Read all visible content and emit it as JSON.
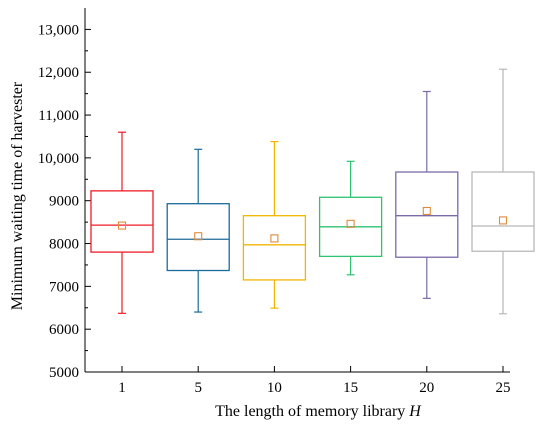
{
  "chart_data": {
    "type": "box",
    "xlabel": "The length of memory library",
    "xlabel_var": "H",
    "ylabel": "Minimum waiting time of harvester",
    "ylim": [
      5000,
      13500
    ],
    "yticks": [
      5000,
      6000,
      7000,
      8000,
      9000,
      10000,
      11000,
      12000,
      13000
    ],
    "ytick_labels": [
      "5000",
      "6000",
      "7000",
      "8000",
      "9000",
      "10,000",
      "11,000",
      "12,000",
      "13,000"
    ],
    "categories": [
      "1",
      "5",
      "10",
      "15",
      "20",
      "25"
    ],
    "mean_marker_color": "#e08a3c",
    "grid": false,
    "boxes": [
      {
        "category": "1",
        "color": "#ee1c25",
        "whisker_low": 6370,
        "q1": 7800,
        "median": 8430,
        "q3": 9230,
        "whisker_high": 10600,
        "mean": 8420
      },
      {
        "category": "5",
        "color": "#1b6b9a",
        "whisker_low": 6400,
        "q1": 7370,
        "median": 8100,
        "q3": 8930,
        "whisker_high": 10200,
        "mean": 8170
      },
      {
        "category": "10",
        "color": "#f2b600",
        "whisker_low": 6490,
        "q1": 7150,
        "median": 7970,
        "q3": 8650,
        "whisker_high": 10380,
        "mean": 8120
      },
      {
        "category": "15",
        "color": "#2ec272",
        "whisker_low": 7270,
        "q1": 7700,
        "median": 8390,
        "q3": 9080,
        "whisker_high": 9920,
        "mean": 8460
      },
      {
        "category": "20",
        "color": "#7b6aa8",
        "whisker_low": 6720,
        "q1": 7680,
        "median": 8650,
        "q3": 9670,
        "whisker_high": 11550,
        "mean": 8760
      },
      {
        "category": "25",
        "color": "#b8b8b8",
        "whisker_low": 6360,
        "q1": 7820,
        "median": 8410,
        "q3": 9670,
        "whisker_high": 12070,
        "mean": 8540
      }
    ]
  }
}
